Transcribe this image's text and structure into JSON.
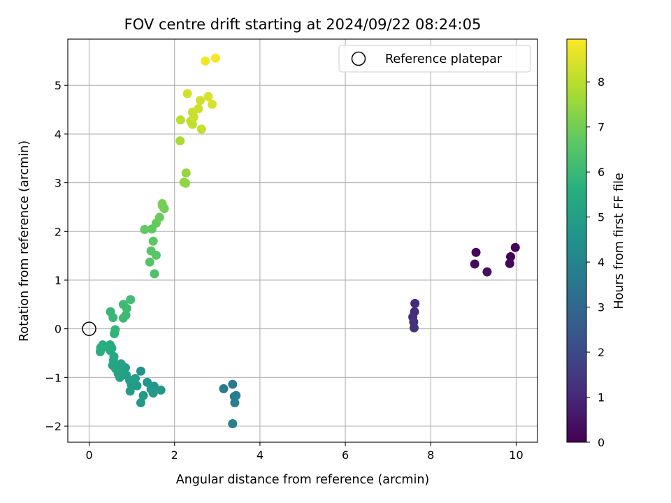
{
  "chart_data": {
    "type": "scatter",
    "title": "FOV centre drift starting at 2024/09/22 08:24:05",
    "xlabel": "Angular distance from reference (arcmin)",
    "ylabel": "Rotation from reference (arcmin)",
    "xlim": [
      -0.5,
      10.5
    ],
    "ylim": [
      -2.33,
      5.95
    ],
    "x_ticks": [
      0,
      2,
      4,
      6,
      8,
      10
    ],
    "y_ticks": [
      -2,
      -1,
      0,
      1,
      2,
      3,
      4,
      5
    ],
    "grid": true,
    "colormap": "viridis",
    "colorbar": {
      "label": "Hours from first FF file",
      "range": [
        0,
        8.95
      ],
      "ticks": [
        0,
        1,
        2,
        3,
        4,
        5,
        6,
        7,
        8
      ]
    },
    "legend": {
      "placement": "top-right",
      "entries": [
        "Reference platepar"
      ]
    },
    "reference_point": {
      "x": 0,
      "y": 0
    },
    "points": [
      {
        "x": 9.06,
        "y": 1.57,
        "c": 0.15
      },
      {
        "x": 9.03,
        "y": 1.33,
        "c": 0.25
      },
      {
        "x": 9.32,
        "y": 1.17,
        "c": 0.35
      },
      {
        "x": 9.87,
        "y": 1.48,
        "c": 0.1
      },
      {
        "x": 9.85,
        "y": 1.34,
        "c": 0.2
      },
      {
        "x": 9.98,
        "y": 1.67,
        "c": 0.05
      },
      {
        "x": 7.63,
        "y": 0.52,
        "c": 1.05
      },
      {
        "x": 7.62,
        "y": 0.35,
        "c": 1.1
      },
      {
        "x": 7.58,
        "y": 0.24,
        "c": 1.15
      },
      {
        "x": 7.6,
        "y": 0.14,
        "c": 1.2
      },
      {
        "x": 7.61,
        "y": 0.02,
        "c": 1.25
      },
      {
        "x": 3.36,
        "y": -1.14,
        "c": 3.6
      },
      {
        "x": 3.15,
        "y": -1.23,
        "c": 3.7
      },
      {
        "x": 3.4,
        "y": -1.39,
        "c": 3.75
      },
      {
        "x": 3.44,
        "y": -1.37,
        "c": 3.8
      },
      {
        "x": 3.41,
        "y": -1.52,
        "c": 3.85
      },
      {
        "x": 3.36,
        "y": -1.95,
        "c": 3.9
      },
      {
        "x": 1.21,
        "y": -0.87,
        "c": 4.6
      },
      {
        "x": 1.36,
        "y": -1.1,
        "c": 4.65
      },
      {
        "x": 1.45,
        "y": -1.24,
        "c": 4.7
      },
      {
        "x": 1.52,
        "y": -1.18,
        "c": 4.72
      },
      {
        "x": 1.68,
        "y": -1.26,
        "c": 4.75
      },
      {
        "x": 1.5,
        "y": -1.32,
        "c": 4.78
      },
      {
        "x": 1.27,
        "y": -1.37,
        "c": 4.8
      },
      {
        "x": 1.21,
        "y": -1.52,
        "c": 4.82
      },
      {
        "x": 1.12,
        "y": -1.17,
        "c": 4.85
      },
      {
        "x": 1.03,
        "y": -1.1,
        "c": 4.88
      },
      {
        "x": 0.95,
        "y": -1.06,
        "c": 4.9
      },
      {
        "x": 0.96,
        "y": -1.28,
        "c": 4.92
      },
      {
        "x": 0.99,
        "y": -1.15,
        "c": 4.95
      },
      {
        "x": 1.08,
        "y": -1.02,
        "c": 4.98
      },
      {
        "x": 0.87,
        "y": -0.95,
        "c": 5.0
      },
      {
        "x": 0.85,
        "y": -0.8,
        "c": 5.05
      },
      {
        "x": 0.78,
        "y": -0.88,
        "c": 5.08
      },
      {
        "x": 0.72,
        "y": -1.0,
        "c": 5.1
      },
      {
        "x": 0.68,
        "y": -0.92,
        "c": 5.12
      },
      {
        "x": 0.75,
        "y": -0.72,
        "c": 5.15
      },
      {
        "x": 0.62,
        "y": -0.82,
        "c": 5.2
      },
      {
        "x": 0.55,
        "y": -0.75,
        "c": 5.25
      },
      {
        "x": 0.57,
        "y": -0.65,
        "c": 5.3
      },
      {
        "x": 0.58,
        "y": -0.57,
        "c": 5.35
      },
      {
        "x": 0.53,
        "y": -0.4,
        "c": 5.4
      },
      {
        "x": 0.49,
        "y": -0.33,
        "c": 5.45
      },
      {
        "x": 0.5,
        "y": -0.45,
        "c": 5.5
      },
      {
        "x": 0.42,
        "y": -0.38,
        "c": 5.52
      },
      {
        "x": 0.32,
        "y": -0.33,
        "c": 5.55
      },
      {
        "x": 0.27,
        "y": -0.39,
        "c": 5.58
      },
      {
        "x": 0.26,
        "y": -0.47,
        "c": 5.6
      },
      {
        "x": 0.59,
        "y": -0.1,
        "c": 5.8
      },
      {
        "x": 0.61,
        "y": -0.02,
        "c": 5.85
      },
      {
        "x": 0.5,
        "y": 0.35,
        "c": 5.9
      },
      {
        "x": 0.56,
        "y": 0.23,
        "c": 5.95
      },
      {
        "x": 0.8,
        "y": 0.22,
        "c": 6.0
      },
      {
        "x": 0.86,
        "y": 0.28,
        "c": 6.05
      },
      {
        "x": 0.88,
        "y": 0.42,
        "c": 6.08
      },
      {
        "x": 0.8,
        "y": 0.5,
        "c": 6.1
      },
      {
        "x": 0.97,
        "y": 0.6,
        "c": 6.15
      },
      {
        "x": 1.53,
        "y": 1.13,
        "c": 6.4
      },
      {
        "x": 1.42,
        "y": 1.37,
        "c": 6.5
      },
      {
        "x": 1.45,
        "y": 1.6,
        "c": 6.55
      },
      {
        "x": 1.57,
        "y": 1.51,
        "c": 6.6
      },
      {
        "x": 1.5,
        "y": 1.8,
        "c": 6.65
      },
      {
        "x": 1.47,
        "y": 2.05,
        "c": 6.7
      },
      {
        "x": 1.3,
        "y": 2.04,
        "c": 6.75
      },
      {
        "x": 1.57,
        "y": 2.17,
        "c": 6.8
      },
      {
        "x": 1.65,
        "y": 2.29,
        "c": 6.85
      },
      {
        "x": 1.72,
        "y": 2.52,
        "c": 6.95
      },
      {
        "x": 1.76,
        "y": 2.47,
        "c": 7.0
      },
      {
        "x": 1.71,
        "y": 2.57,
        "c": 7.05
      },
      {
        "x": 2.26,
        "y": 2.99,
        "c": 7.4
      },
      {
        "x": 2.22,
        "y": 3.01,
        "c": 7.45
      },
      {
        "x": 2.27,
        "y": 3.2,
        "c": 7.5
      },
      {
        "x": 2.13,
        "y": 3.86,
        "c": 7.8
      },
      {
        "x": 2.14,
        "y": 4.29,
        "c": 8.0
      },
      {
        "x": 2.38,
        "y": 4.26,
        "c": 8.05
      },
      {
        "x": 2.42,
        "y": 4.2,
        "c": 8.1
      },
      {
        "x": 2.63,
        "y": 4.1,
        "c": 8.15
      },
      {
        "x": 2.45,
        "y": 4.35,
        "c": 8.18
      },
      {
        "x": 2.42,
        "y": 4.45,
        "c": 8.2
      },
      {
        "x": 2.56,
        "y": 4.52,
        "c": 8.25
      },
      {
        "x": 2.6,
        "y": 4.69,
        "c": 8.3
      },
      {
        "x": 2.3,
        "y": 4.83,
        "c": 8.35
      },
      {
        "x": 2.79,
        "y": 4.77,
        "c": 8.4
      },
      {
        "x": 2.88,
        "y": 4.61,
        "c": 8.45
      },
      {
        "x": 2.72,
        "y": 5.5,
        "c": 8.8
      },
      {
        "x": 2.96,
        "y": 5.56,
        "c": 8.9
      }
    ]
  }
}
